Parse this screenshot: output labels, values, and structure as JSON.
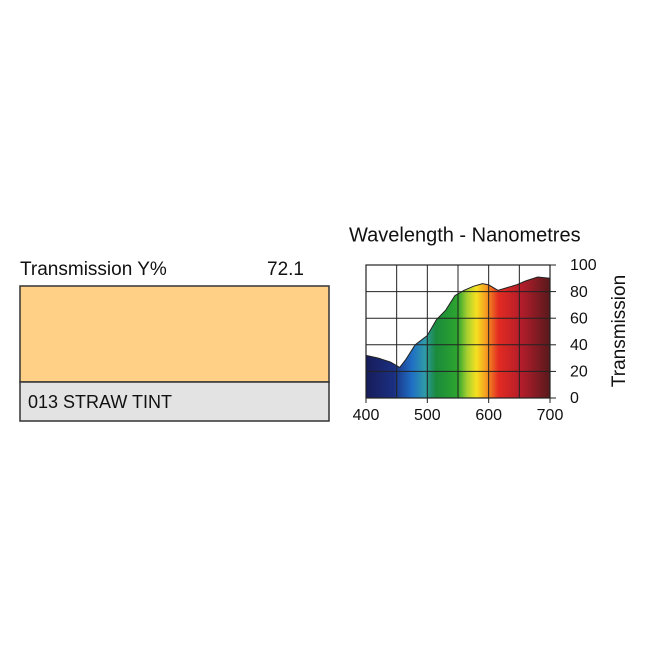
{
  "swatch": {
    "label": "Transmission Y%",
    "value": 72.1,
    "color": "#ffd086",
    "name": "013 STRAW TINT"
  },
  "chart_data": {
    "type": "area",
    "title": "Wavelength - Nanometres",
    "y_label": "Transmission",
    "x": [
      400,
      420,
      440,
      455,
      465,
      480,
      500,
      515,
      530,
      545,
      560,
      575,
      590,
      600,
      615,
      630,
      645,
      660,
      680,
      700
    ],
    "values": [
      32,
      30,
      27,
      23,
      29,
      40,
      47,
      59,
      66,
      77,
      81,
      84,
      86,
      85,
      81,
      83,
      85,
      88,
      91,
      90
    ],
    "xlim": [
      400,
      700
    ],
    "ylim": [
      0,
      100
    ],
    "xticks": [
      400,
      500,
      600,
      700
    ],
    "yticks": [
      0,
      20,
      40,
      60,
      80,
      100
    ],
    "grid": true
  }
}
